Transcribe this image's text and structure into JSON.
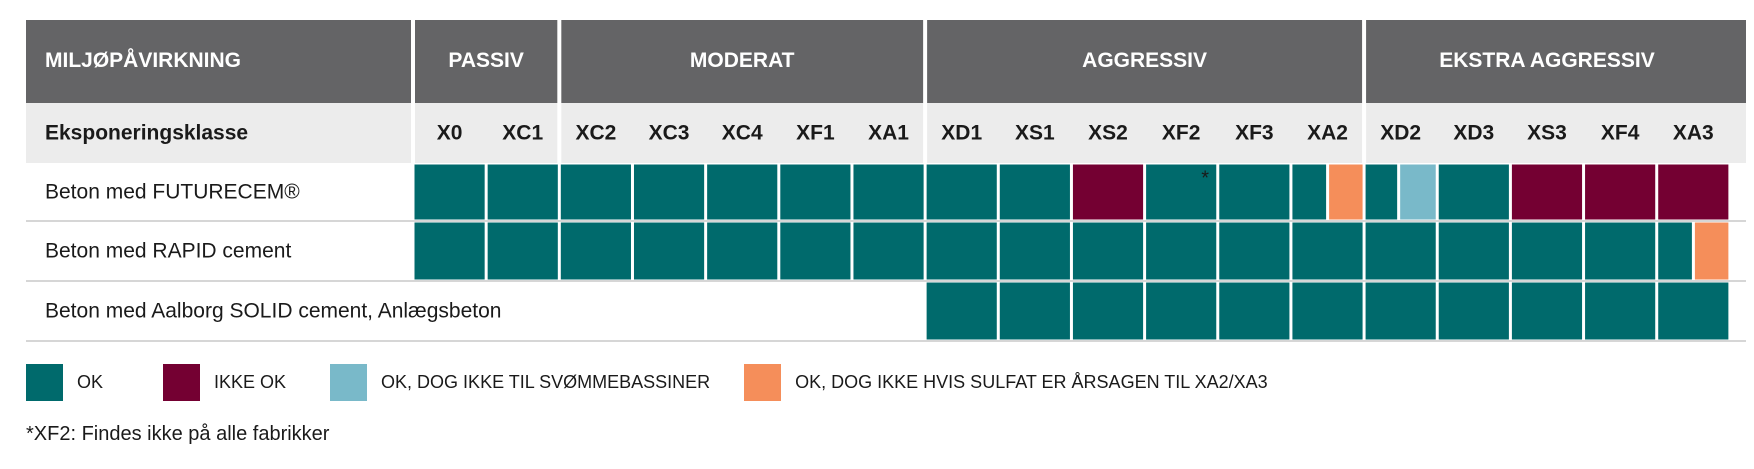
{
  "chart_data": {
    "type": "table",
    "header_label": "MILJØPÅVIRKNING",
    "groups": [
      {
        "name": "PASSIV",
        "classes": [
          "X0",
          "XC1"
        ]
      },
      {
        "name": "MODERAT",
        "classes": [
          "XC2",
          "XC3",
          "XC4",
          "XF1",
          "XA1"
        ]
      },
      {
        "name": "AGGRESSIV",
        "classes": [
          "XD1",
          "XS1",
          "XS2",
          "XF2",
          "XF3",
          "XA2"
        ]
      },
      {
        "name": "EKSTRA AGGRESSIV",
        "classes": [
          "XD2",
          "XD3",
          "XS3",
          "XF4",
          "XA3"
        ]
      }
    ],
    "subheader_label": "Eksponeringsklasse",
    "rows": [
      {
        "name": "Beton med FUTURECEM®",
        "cells": [
          "ok",
          "ok",
          "ok",
          "ok",
          "ok",
          "ok",
          "ok",
          "ok",
          "ok",
          "ikke_ok",
          "ok*",
          "ok",
          "ok|sulfat",
          "ok|svommebassin",
          "ok",
          "ikke_ok",
          "ikke_ok",
          "ikke_ok"
        ]
      },
      {
        "name": "Beton med RAPID cement",
        "cells": [
          "ok",
          "ok",
          "ok",
          "ok",
          "ok",
          "ok",
          "ok",
          "ok",
          "ok",
          "ok",
          "ok",
          "ok",
          "ok",
          "ok",
          "ok",
          "ok",
          "ok",
          "ok|sulfat"
        ]
      },
      {
        "name": "Beton med Aalborg SOLID cement, Anlægsbeton",
        "cells": [
          "",
          "",
          "",
          "",
          "",
          "",
          "",
          "ok",
          "ok",
          "ok",
          "ok",
          "ok",
          "ok",
          "ok",
          "ok",
          "ok",
          "ok",
          "ok"
        ]
      }
    ],
    "status_colors": {
      "ok": "#006a6c",
      "ikke_ok": "#740032",
      "svommebassin": "#79b9c9",
      "sulfat": "#f58e5a"
    },
    "header_color": "#646466",
    "subheader_color": "#ececec",
    "asterisk": "*"
  },
  "legend": [
    {
      "key": "ok",
      "label": "OK",
      "color": "#006a6c"
    },
    {
      "key": "ikke_ok",
      "label": "IKKE OK",
      "color": "#740032"
    },
    {
      "key": "svommebassin",
      "label": "OK, DOG IKKE TIL SVØMMEBASSINER",
      "color": "#79b9c9"
    },
    {
      "key": "sulfat",
      "label": "OK, DOG IKKE HVIS SULFAT ER ÅRSAGEN TIL XA2/XA3",
      "color": "#f58e5a"
    }
  ],
  "footnote": "*XF2: Findes ikke på alle fabrikker"
}
